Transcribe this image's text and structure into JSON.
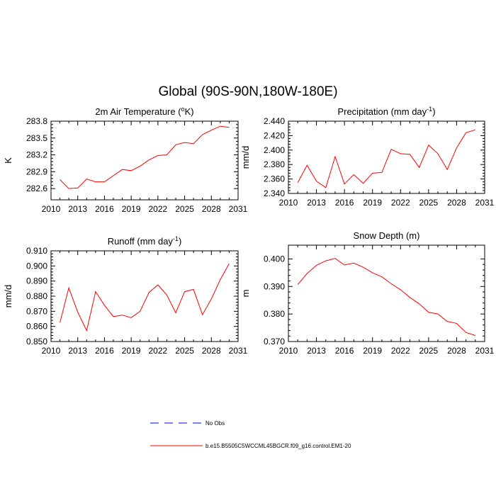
{
  "figure": {
    "title": "Global (90S-90N,180W-180E)",
    "line_color": "#ff0000",
    "obs_color": "#0000ff"
  },
  "legend": {
    "obs_label": "No Obs",
    "model_label": "b.e15.B5505C5WCCML45BGCR.f09_g16.control.EM1-20"
  },
  "chart_data": [
    {
      "type": "line",
      "id": "tas",
      "title": "2m Air Temperature (",
      "title_sup": "o",
      "title_suffix": "K)",
      "ylabel": "K",
      "xlim": [
        2010,
        2031
      ],
      "ylim": [
        282.4,
        283.8
      ],
      "xticks": [
        2010,
        2013,
        2016,
        2019,
        2022,
        2025,
        2028,
        2031
      ],
      "yticks": [
        282.6,
        282.9,
        283.2,
        283.5,
        283.8
      ],
      "ytick_labels": [
        "282.6",
        "282.9",
        "283.2",
        "283.5",
        "283.8"
      ],
      "series": [
        {
          "name": "b.e15.B5505C5WCCML45BGCR.f09_g16.control.EM1-20",
          "x": [
            2011,
            2012,
            2013,
            2014,
            2015,
            2016,
            2017,
            2018,
            2019,
            2020,
            2021,
            2022,
            2023,
            2024,
            2025,
            2026,
            2027,
            2028,
            2029,
            2030
          ],
          "y": [
            282.76,
            282.6,
            282.61,
            282.77,
            282.72,
            282.72,
            282.83,
            282.94,
            282.92,
            283.0,
            283.11,
            283.19,
            283.2,
            283.38,
            283.42,
            283.4,
            283.56,
            283.64,
            283.71,
            283.69
          ]
        }
      ]
    },
    {
      "type": "line",
      "id": "pr",
      "title": "Precipitation (mm day",
      "title_sup": "-1",
      "title_suffix": ")",
      "ylabel": "mm/d",
      "xlim": [
        2010,
        2031
      ],
      "ylim": [
        2.34,
        2.44
      ],
      "xticks": [
        2010,
        2013,
        2016,
        2019,
        2022,
        2025,
        2028,
        2031
      ],
      "yticks": [
        2.34,
        2.36,
        2.38,
        2.4,
        2.42,
        2.44
      ],
      "ytick_labels": [
        "2.340",
        "2.360",
        "2.380",
        "2.400",
        "2.420",
        "2.440"
      ],
      "series": [
        {
          "name": "b.e15.B5505C5WCCML45BGCR.f09_g16.control.EM1-20",
          "x": [
            2011,
            2012,
            2013,
            2014,
            2015,
            2016,
            2017,
            2018,
            2019,
            2020,
            2021,
            2022,
            2023,
            2024,
            2025,
            2026,
            2027,
            2028,
            2029,
            2030
          ],
          "y": [
            2.355,
            2.379,
            2.357,
            2.348,
            2.391,
            2.353,
            2.366,
            2.354,
            2.368,
            2.369,
            2.401,
            2.395,
            2.394,
            2.376,
            2.407,
            2.395,
            2.373,
            2.403,
            2.424,
            2.428
          ]
        }
      ]
    },
    {
      "type": "line",
      "id": "runoff",
      "title": "Runoff (mm day",
      "title_sup": "-1",
      "title_suffix": ")",
      "ylabel": "mm/d",
      "xlim": [
        2010,
        2031
      ],
      "ylim": [
        0.85,
        0.91
      ],
      "xticks": [
        2010,
        2013,
        2016,
        2019,
        2022,
        2025,
        2028,
        2031
      ],
      "yticks": [
        0.85,
        0.86,
        0.87,
        0.88,
        0.89,
        0.9,
        0.91
      ],
      "ytick_labels": [
        "0.850",
        "0.860",
        "0.870",
        "0.880",
        "0.890",
        "0.900",
        "0.910"
      ],
      "series": [
        {
          "name": "b.e15.B5505C5WCCML45BGCR.f09_g16.control.EM1-20",
          "x": [
            2011,
            2012,
            2013,
            2014,
            2015,
            2016,
            2017,
            2018,
            2019,
            2020,
            2021,
            2022,
            2023,
            2024,
            2025,
            2026,
            2027,
            2028,
            2029,
            2030
          ],
          "y": [
            0.8625,
            0.8855,
            0.8695,
            0.8572,
            0.883,
            0.874,
            0.8665,
            0.8675,
            0.8658,
            0.87,
            0.8825,
            0.8875,
            0.8808,
            0.869,
            0.883,
            0.8845,
            0.8677,
            0.8782,
            0.891,
            0.9015
          ]
        }
      ]
    },
    {
      "type": "line",
      "id": "snowdepth",
      "title": "Snow Depth (m)",
      "title_sup": "",
      "title_suffix": "",
      "ylabel": "m",
      "xlim": [
        2010,
        2031
      ],
      "ylim": [
        0.37,
        0.405
      ],
      "xticks": [
        2010,
        2013,
        2016,
        2019,
        2022,
        2025,
        2028,
        2031
      ],
      "yticks": [
        0.37,
        0.38,
        0.39,
        0.4
      ],
      "ytick_labels": [
        "0.370",
        "0.380",
        "0.390",
        "0.400"
      ],
      "series": [
        {
          "name": "b.e15.B5505C5WCCML45BGCR.f09_g16.control.EM1-20",
          "x": [
            2011,
            2012,
            2013,
            2014,
            2015,
            2016,
            2017,
            2018,
            2019,
            2020,
            2021,
            2022,
            2023,
            2024,
            2025,
            2026,
            2027,
            2028,
            2029,
            2030
          ],
          "y": [
            0.3907,
            0.3947,
            0.3977,
            0.3993,
            0.4002,
            0.3978,
            0.3985,
            0.397,
            0.395,
            0.3935,
            0.391,
            0.3888,
            0.386,
            0.3837,
            0.3806,
            0.38,
            0.3773,
            0.3766,
            0.3733,
            0.3722
          ]
        }
      ]
    }
  ]
}
